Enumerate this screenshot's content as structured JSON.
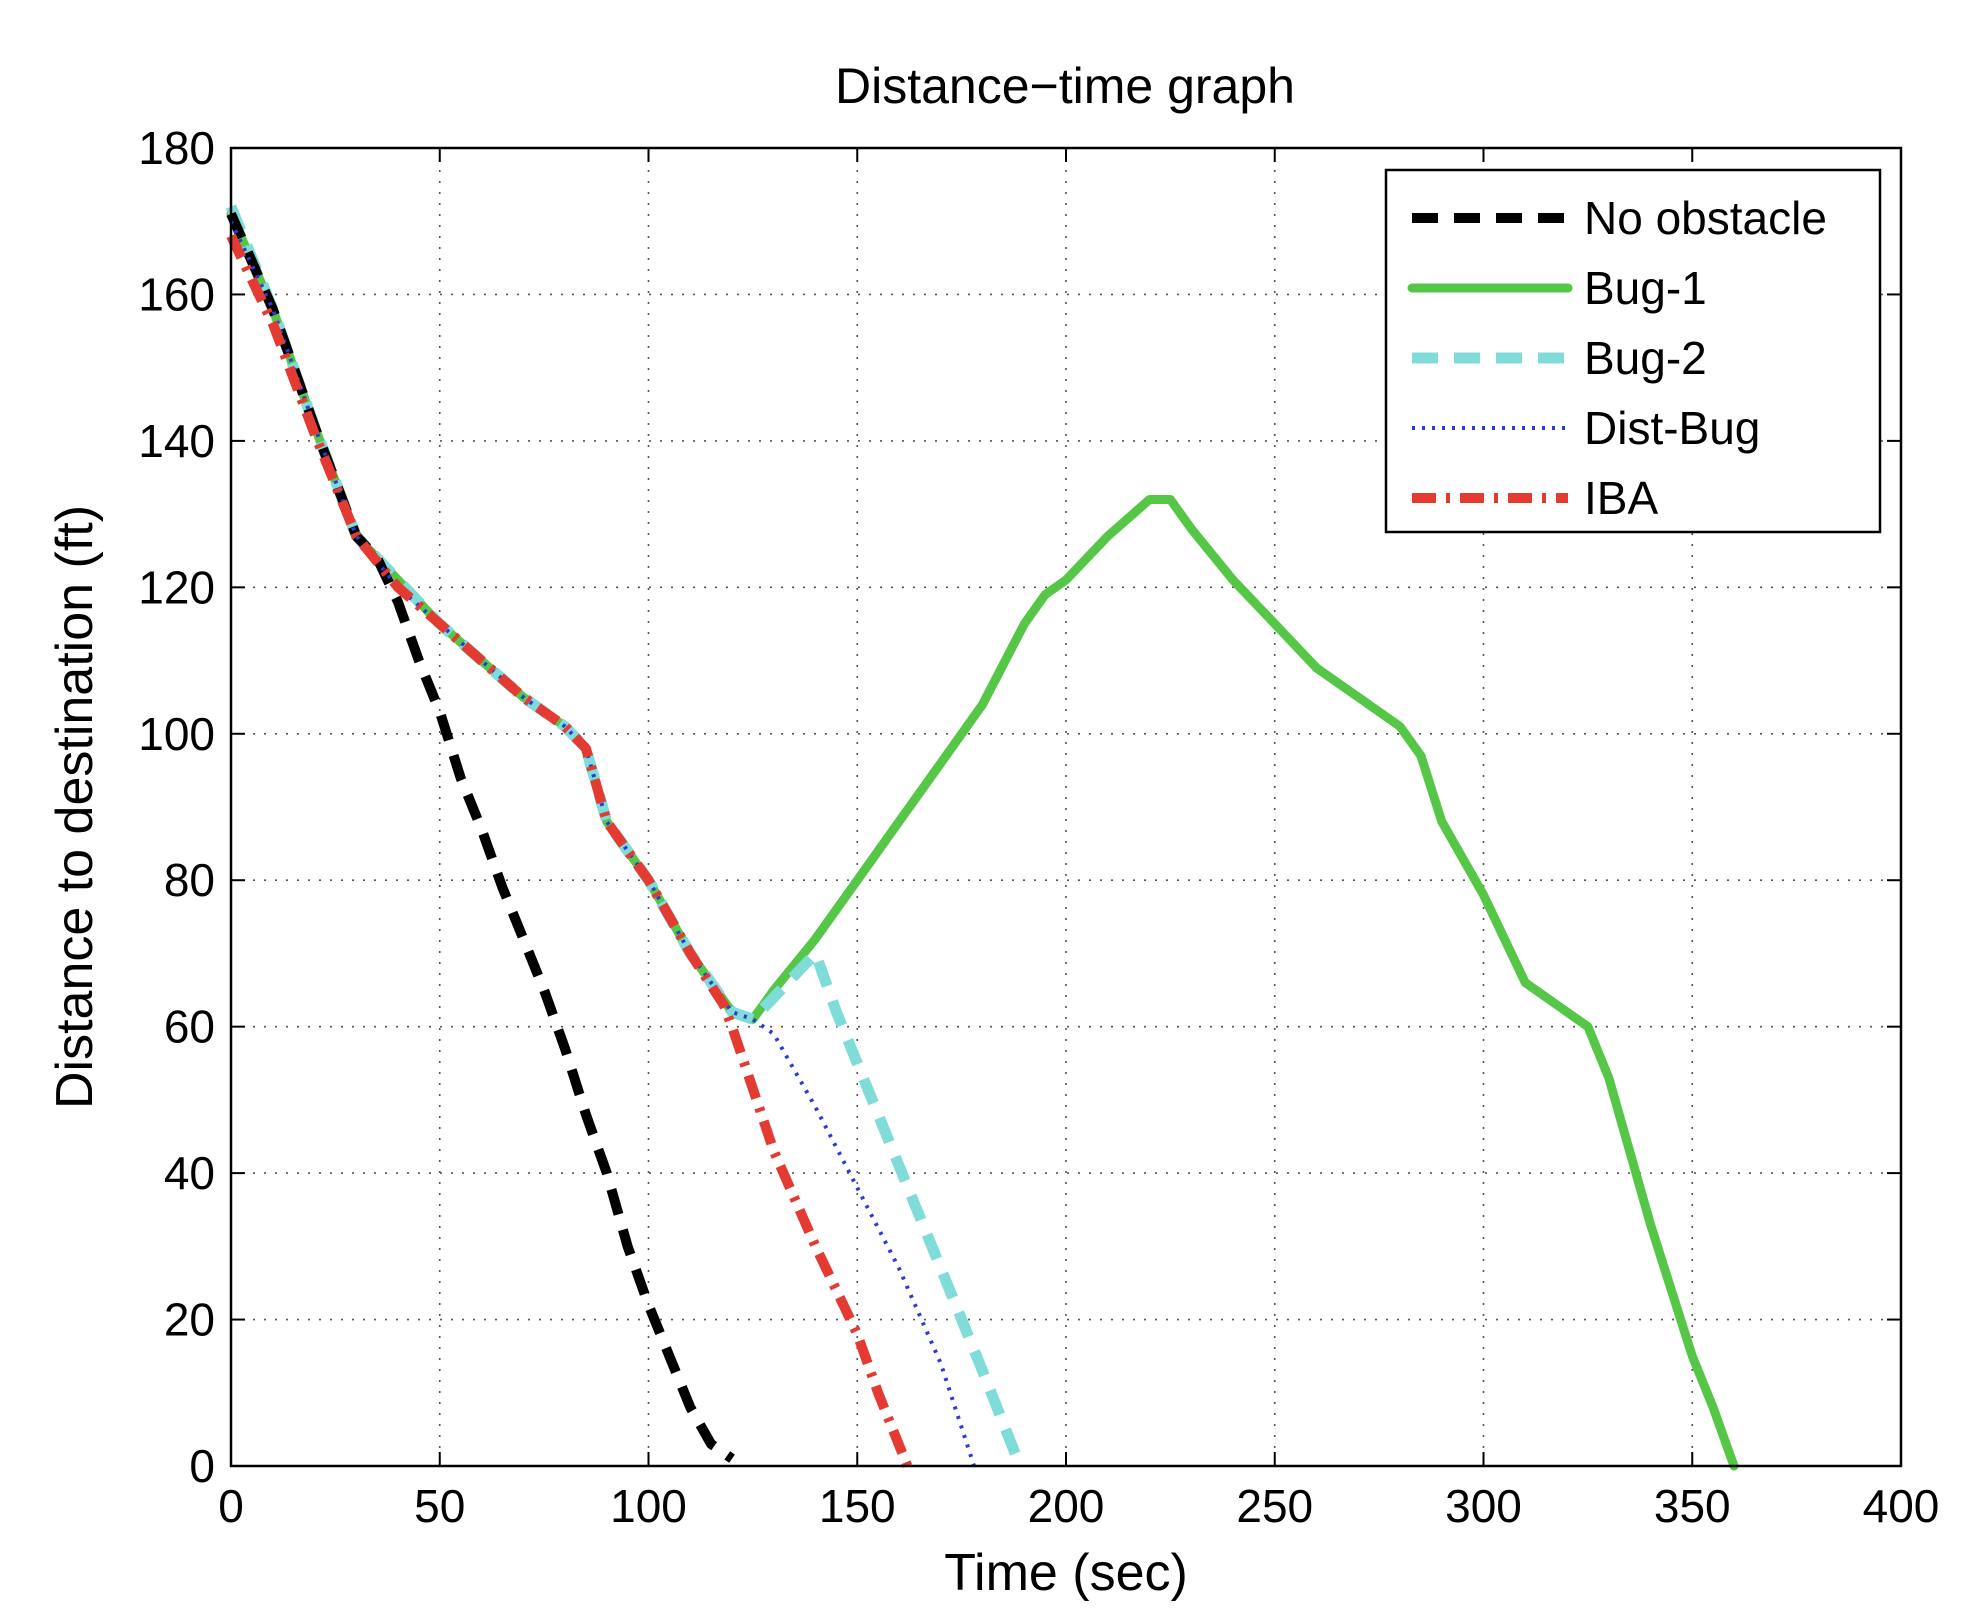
{
  "chart_data": {
    "type": "line",
    "title": "Distance−time graph",
    "xlabel": "Time (sec)",
    "ylabel": "Distance to destination (ft)",
    "xlim": [
      0,
      400
    ],
    "ylim": [
      0,
      180
    ],
    "xticks": [
      0,
      50,
      100,
      150,
      200,
      250,
      300,
      350,
      400
    ],
    "yticks": [
      0,
      20,
      40,
      60,
      80,
      100,
      120,
      140,
      160,
      180
    ],
    "grid": true,
    "legend_position": "top-right",
    "series": [
      {
        "name": "No obstacle",
        "color": "#000000",
        "style": "dashed",
        "x": [
          0,
          10,
          20,
          30,
          35,
          40,
          45,
          50,
          55,
          60,
          65,
          70,
          75,
          80,
          85,
          90,
          95,
          100,
          105,
          110,
          115,
          120
        ],
        "y": [
          171,
          158,
          142,
          127,
          124,
          118,
          110,
          103,
          94,
          87,
          79,
          72,
          65,
          57,
          48,
          40,
          30,
          22,
          15,
          8,
          3,
          1
        ]
      },
      {
        "name": "Bug-1",
        "color": "#55c646",
        "style": "solid",
        "x": [
          0,
          10,
          20,
          30,
          40,
          50,
          60,
          70,
          80,
          85,
          90,
          100,
          110,
          120,
          125,
          130,
          140,
          150,
          160,
          170,
          180,
          190,
          195,
          200,
          210,
          220,
          225,
          230,
          240,
          250,
          260,
          270,
          280,
          285,
          290,
          300,
          310,
          320,
          325,
          330,
          340,
          350,
          355,
          360
        ],
        "y": [
          171,
          158,
          142,
          127,
          121,
          115,
          110,
          105,
          101,
          98,
          88,
          80,
          70,
          62,
          61,
          65,
          72,
          80,
          88,
          96,
          104,
          115,
          119,
          121,
          127,
          132,
          132,
          128,
          121,
          115,
          109,
          105,
          101,
          97,
          88,
          78,
          66,
          62,
          60,
          53,
          33,
          15,
          8,
          0
        ]
      },
      {
        "name": "Bug-2",
        "color": "#7fdcd9",
        "style": "dashed",
        "x": [
          0,
          10,
          20,
          30,
          40,
          50,
          60,
          70,
          80,
          85,
          90,
          100,
          110,
          120,
          125,
          130,
          140,
          145,
          150,
          160,
          170,
          180,
          189
        ],
        "y": [
          172,
          158,
          142,
          127,
          121,
          115,
          110,
          105,
          101,
          98,
          88,
          80,
          70,
          62,
          61,
          64,
          70,
          62,
          55,
          41,
          27,
          13,
          0
        ]
      },
      {
        "name": "Dist-Bug",
        "color": "#2a3bd6",
        "style": "dotted",
        "x": [
          0,
          10,
          20,
          30,
          40,
          50,
          60,
          70,
          80,
          85,
          90,
          100,
          110,
          120,
          125,
          130,
          140,
          150,
          160,
          170,
          178
        ],
        "y": [
          170,
          158,
          142,
          127,
          120,
          115,
          110,
          105,
          101,
          98,
          88,
          80,
          70,
          62,
          61,
          59,
          49,
          38,
          27,
          14,
          0
        ]
      },
      {
        "name": "IBA",
        "color": "#e33a32",
        "style": "dashdot",
        "x": [
          0,
          10,
          20,
          30,
          40,
          50,
          60,
          70,
          80,
          85,
          90,
          100,
          110,
          118,
          120,
          130,
          140,
          150,
          155,
          162
        ],
        "y": [
          168,
          156,
          141,
          127,
          120,
          115,
          110,
          105,
          101,
          98,
          88,
          80,
          70,
          63,
          60,
          43,
          30,
          18,
          10,
          0
        ]
      }
    ]
  }
}
